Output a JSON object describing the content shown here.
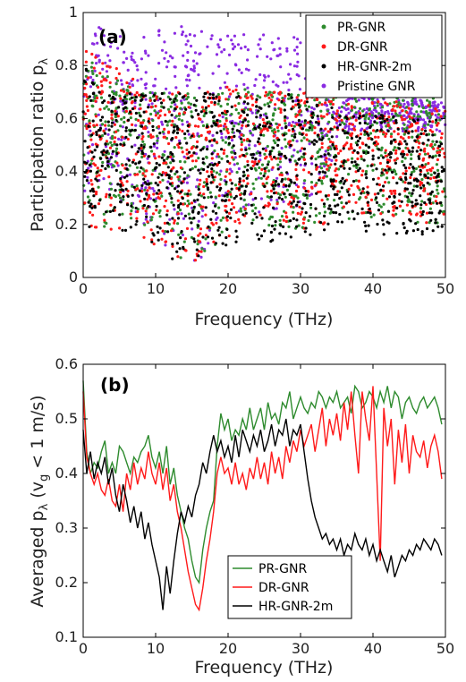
{
  "chart_data": [
    {
      "type": "scatter",
      "label": "(a)",
      "xlabel": "Frequency (THz)",
      "ylabel": "Participation ratio p",
      "ylabel_sub": "λ",
      "xlim": [
        0,
        50
      ],
      "ylim": [
        0,
        1
      ],
      "xticks": [
        "0",
        "10",
        "20",
        "30",
        "40",
        "50"
      ],
      "yticks": [
        "0",
        "0.2",
        "0.4",
        "0.6",
        "0.8",
        "1"
      ],
      "legend_position": "top-right",
      "grid": false,
      "series": [
        {
          "name": "PR-GNR",
          "color": "#2e8b2e",
          "envelope": [
            [
              0,
              0.2,
              0.95
            ],
            [
              2,
              0.18,
              0.8
            ],
            [
              5,
              0.2,
              0.75
            ],
            [
              8,
              0.15,
              0.7
            ],
            [
              10,
              0.1,
              0.7
            ],
            [
              12,
              0.08,
              0.7
            ],
            [
              14,
              0.06,
              0.7
            ],
            [
              16,
              0.05,
              0.7
            ],
            [
              18,
              0.08,
              0.7
            ],
            [
              20,
              0.15,
              0.72
            ],
            [
              25,
              0.18,
              0.7
            ],
            [
              30,
              0.18,
              0.7
            ],
            [
              34,
              0.2,
              0.68
            ],
            [
              36,
              0.22,
              0.7
            ],
            [
              40,
              0.2,
              0.7
            ],
            [
              45,
              0.2,
              0.68
            ],
            [
              50,
              0.2,
              0.68
            ]
          ]
        },
        {
          "name": "DR-GNR",
          "color": "#ff1a1a",
          "envelope": [
            [
              0,
              0.2,
              0.9
            ],
            [
              2,
              0.18,
              0.82
            ],
            [
              5,
              0.18,
              0.8
            ],
            [
              8,
              0.15,
              0.72
            ],
            [
              10,
              0.1,
              0.7
            ],
            [
              12,
              0.08,
              0.7
            ],
            [
              14,
              0.06,
              0.7
            ],
            [
              16,
              0.05,
              0.7
            ],
            [
              18,
              0.08,
              0.7
            ],
            [
              20,
              0.15,
              0.72
            ],
            [
              25,
              0.18,
              0.7
            ],
            [
              30,
              0.18,
              0.7
            ],
            [
              34,
              0.2,
              0.7
            ],
            [
              36,
              0.22,
              0.65
            ],
            [
              40,
              0.22,
              0.68
            ],
            [
              45,
              0.2,
              0.66
            ],
            [
              50,
              0.2,
              0.65
            ]
          ]
        },
        {
          "name": "HR-GNR-2m",
          "color": "#000000",
          "envelope": [
            [
              0,
              0.18,
              0.85
            ],
            [
              2,
              0.15,
              0.7
            ],
            [
              5,
              0.18,
              0.7
            ],
            [
              8,
              0.12,
              0.7
            ],
            [
              10,
              0.05,
              0.7
            ],
            [
              12,
              0.05,
              0.7
            ],
            [
              14,
              0.05,
              0.7
            ],
            [
              16,
              0.05,
              0.7
            ],
            [
              18,
              0.08,
              0.7
            ],
            [
              20,
              0.12,
              0.7
            ],
            [
              25,
              0.12,
              0.68
            ],
            [
              30,
              0.15,
              0.7
            ],
            [
              34,
              0.15,
              0.65
            ],
            [
              36,
              0.15,
              0.62
            ],
            [
              40,
              0.15,
              0.62
            ],
            [
              45,
              0.15,
              0.6
            ],
            [
              50,
              0.15,
              0.6
            ]
          ]
        },
        {
          "name": "Pristine GNR",
          "color": "#8a2be2",
          "envelope": [
            [
              0,
              0.3,
              1.0
            ],
            [
              2,
              0.3,
              0.95
            ],
            [
              5,
              0.3,
              0.92
            ],
            [
              8,
              0.2,
              0.9
            ],
            [
              10,
              0.15,
              0.95
            ],
            [
              12,
              0.1,
              0.95
            ],
            [
              14,
              0.05,
              0.95
            ],
            [
              16,
              0.05,
              0.95
            ],
            [
              18,
              0.15,
              0.92
            ],
            [
              20,
              0.2,
              0.95
            ],
            [
              25,
              0.25,
              0.92
            ],
            [
              30,
              0.25,
              0.92
            ],
            [
              34,
              0.4,
              0.85
            ],
            [
              36,
              0.55,
              0.75
            ],
            [
              40,
              0.55,
              0.7
            ],
            [
              45,
              0.55,
              0.68
            ],
            [
              50,
              0.55,
              0.66
            ]
          ]
        }
      ]
    },
    {
      "type": "line",
      "label": "(b)",
      "xlabel": "Frequency (THz)",
      "ylabel": "Averaged p",
      "ylabel_sub": "λ",
      "ylabel_mid": " (v",
      "ylabel_sub2": "g",
      "ylabel_end": " < 1 m/s)",
      "xlim": [
        0,
        50
      ],
      "ylim": [
        0.1,
        0.6
      ],
      "xticks": [
        "0",
        "10",
        "20",
        "30",
        "40",
        "50"
      ],
      "yticks": [
        "0.1",
        "0.2",
        "0.3",
        "0.4",
        "0.5",
        "0.6"
      ],
      "legend_position": "bottom-center",
      "grid": false,
      "x": [
        0,
        0.5,
        1,
        1.5,
        2,
        2.5,
        3,
        3.5,
        4,
        4.5,
        5,
        5.5,
        6,
        6.5,
        7,
        7.5,
        8,
        8.5,
        9,
        9.5,
        10,
        10.5,
        11,
        11.5,
        12,
        12.5,
        13,
        13.5,
        14,
        14.5,
        15,
        15.5,
        16,
        16.5,
        17,
        17.5,
        18,
        18.5,
        19,
        19.5,
        20,
        20.5,
        21,
        21.5,
        22,
        22.5,
        23,
        23.5,
        24,
        24.5,
        25,
        25.5,
        26,
        26.5,
        27,
        27.5,
        28,
        28.5,
        29,
        29.5,
        30,
        30.5,
        31,
        31.5,
        32,
        32.5,
        33,
        33.5,
        34,
        34.5,
        35,
        35.5,
        36,
        36.5,
        37,
        37.5,
        38,
        38.5,
        39,
        39.5,
        40,
        40.5,
        41,
        41.5,
        42,
        42.5,
        43,
        43.5,
        44,
        44.5,
        45,
        45.5,
        46,
        46.5,
        47,
        47.5,
        48,
        48.5,
        49,
        49.5
      ],
      "series": [
        {
          "name": "PR-GNR",
          "color": "#2e8b2e",
          "values": [
            0.57,
            0.44,
            0.4,
            0.42,
            0.41,
            0.44,
            0.46,
            0.4,
            0.42,
            0.4,
            0.45,
            0.44,
            0.42,
            0.4,
            0.43,
            0.42,
            0.44,
            0.45,
            0.47,
            0.43,
            0.41,
            0.44,
            0.4,
            0.45,
            0.38,
            0.41,
            0.36,
            0.33,
            0.3,
            0.28,
            0.24,
            0.21,
            0.2,
            0.26,
            0.3,
            0.33,
            0.35,
            0.45,
            0.51,
            0.48,
            0.5,
            0.46,
            0.48,
            0.47,
            0.5,
            0.48,
            0.52,
            0.48,
            0.5,
            0.52,
            0.48,
            0.53,
            0.5,
            0.51,
            0.49,
            0.53,
            0.52,
            0.55,
            0.5,
            0.52,
            0.54,
            0.52,
            0.51,
            0.53,
            0.52,
            0.55,
            0.54,
            0.52,
            0.54,
            0.53,
            0.55,
            0.52,
            0.53,
            0.54,
            0.51,
            0.56,
            0.55,
            0.52,
            0.53,
            0.55,
            0.54,
            0.52,
            0.55,
            0.53,
            0.56,
            0.52,
            0.55,
            0.54,
            0.5,
            0.53,
            0.54,
            0.52,
            0.51,
            0.53,
            0.54,
            0.52,
            0.53,
            0.54,
            0.52,
            0.49
          ]
        },
        {
          "name": "DR-GNR",
          "color": "#ff1a1a",
          "values": [
            0.55,
            0.43,
            0.4,
            0.38,
            0.4,
            0.37,
            0.36,
            0.39,
            0.35,
            0.34,
            0.38,
            0.33,
            0.4,
            0.37,
            0.42,
            0.38,
            0.41,
            0.39,
            0.44,
            0.4,
            0.38,
            0.42,
            0.37,
            0.41,
            0.35,
            0.38,
            0.33,
            0.3,
            0.26,
            0.22,
            0.19,
            0.16,
            0.15,
            0.19,
            0.24,
            0.28,
            0.33,
            0.4,
            0.43,
            0.4,
            0.41,
            0.38,
            0.42,
            0.38,
            0.4,
            0.37,
            0.41,
            0.39,
            0.43,
            0.39,
            0.42,
            0.38,
            0.44,
            0.4,
            0.43,
            0.39,
            0.45,
            0.42,
            0.46,
            0.44,
            0.48,
            0.45,
            0.47,
            0.49,
            0.44,
            0.48,
            0.52,
            0.45,
            0.5,
            0.47,
            0.51,
            0.46,
            0.53,
            0.48,
            0.55,
            0.47,
            0.4,
            0.55,
            0.5,
            0.46,
            0.56,
            0.4,
            0.24,
            0.52,
            0.45,
            0.5,
            0.38,
            0.48,
            0.42,
            0.49,
            0.4,
            0.47,
            0.44,
            0.43,
            0.46,
            0.41,
            0.45,
            0.47,
            0.44,
            0.39
          ]
        },
        {
          "name": "HR-GNR-2m",
          "color": "#000000",
          "values": [
            0.48,
            0.4,
            0.44,
            0.39,
            0.42,
            0.4,
            0.43,
            0.38,
            0.41,
            0.36,
            0.33,
            0.38,
            0.35,
            0.31,
            0.34,
            0.3,
            0.33,
            0.28,
            0.31,
            0.27,
            0.24,
            0.21,
            0.15,
            0.23,
            0.18,
            0.24,
            0.29,
            0.33,
            0.31,
            0.34,
            0.32,
            0.36,
            0.38,
            0.42,
            0.4,
            0.44,
            0.47,
            0.44,
            0.46,
            0.43,
            0.45,
            0.42,
            0.47,
            0.43,
            0.48,
            0.46,
            0.44,
            0.47,
            0.45,
            0.48,
            0.44,
            0.46,
            0.49,
            0.45,
            0.48,
            0.47,
            0.5,
            0.45,
            0.48,
            0.47,
            0.49,
            0.44,
            0.39,
            0.35,
            0.32,
            0.3,
            0.28,
            0.29,
            0.27,
            0.28,
            0.26,
            0.28,
            0.25,
            0.27,
            0.26,
            0.29,
            0.27,
            0.26,
            0.28,
            0.25,
            0.27,
            0.24,
            0.26,
            0.24,
            0.22,
            0.25,
            0.21,
            0.23,
            0.25,
            0.24,
            0.26,
            0.25,
            0.27,
            0.26,
            0.28,
            0.27,
            0.26,
            0.28,
            0.27,
            0.25
          ]
        }
      ]
    }
  ]
}
